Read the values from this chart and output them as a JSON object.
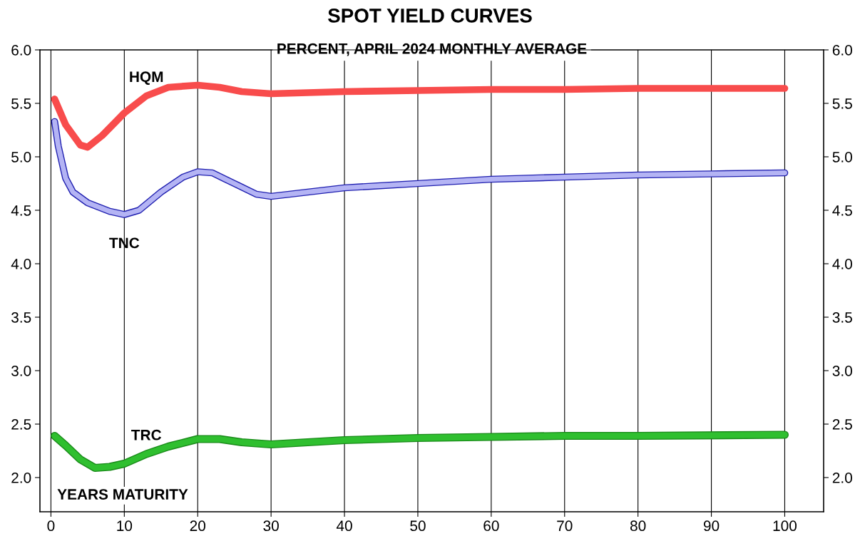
{
  "chart_data": {
    "type": "line",
    "title": "SPOT YIELD CURVES",
    "subtitle": "PERCENT, APRIL 2024 MONTHLY AVERAGE",
    "xlabel": "YEARS MATURITY",
    "xlim": [
      -1.5,
      105.3
    ],
    "xticks": [
      0,
      10,
      20,
      30,
      40,
      50,
      60,
      70,
      80,
      90,
      100
    ],
    "ylim": [
      1.68,
      6.0
    ],
    "yticks": [
      {
        "value": 2,
        "label": "2.0"
      },
      {
        "value": 2.5,
        "label": "2.5"
      },
      {
        "value": 3,
        "label": "3.0"
      },
      {
        "value": 3.5,
        "label": "3.5"
      },
      {
        "value": 4,
        "label": "4.0"
      },
      {
        "value": 4.5,
        "label": "4.5"
      },
      {
        "value": 5,
        "label": "5.0"
      },
      {
        "value": 5.5,
        "label": "5.5"
      },
      {
        "value": 6,
        "label": "6.0"
      }
    ],
    "y2lim": [
      1.68,
      6.0
    ],
    "y2ticks": [
      {
        "value": 2,
        "label": "2.0"
      },
      {
        "value": 2.5,
        "label": "2.5"
      },
      {
        "value": 3,
        "label": "3.0"
      },
      {
        "value": 3.5,
        "label": "3.5"
      },
      {
        "value": 4,
        "label": "4.0"
      },
      {
        "value": 4.5,
        "label": "4.5"
      },
      {
        "value": 5,
        "label": "5.0"
      },
      {
        "value": 5.5,
        "label": "5.5"
      },
      {
        "value": 6,
        "label": "6.0"
      }
    ],
    "grid": "x",
    "legend": false,
    "series": [
      {
        "name": "HQM",
        "color": "#f84c4c",
        "x": [
          0.5,
          2,
          4,
          5,
          7,
          10,
          13,
          16,
          20,
          23,
          26,
          30,
          40,
          50,
          60,
          70,
          80,
          100
        ],
        "values": [
          5.54,
          5.3,
          5.11,
          5.09,
          5.2,
          5.41,
          5.57,
          5.65,
          5.67,
          5.65,
          5.61,
          5.59,
          5.61,
          5.62,
          5.63,
          5.63,
          5.64,
          5.64
        ]
      },
      {
        "name": "TNC",
        "color": "#b4b4f4",
        "x": [
          0.5,
          1,
          2,
          3,
          5,
          8,
          10,
          12,
          15,
          18,
          20,
          22,
          25,
          28,
          30,
          35,
          40,
          50,
          60,
          70,
          80,
          90,
          100
        ],
        "values": [
          5.33,
          5.1,
          4.8,
          4.67,
          4.57,
          4.49,
          4.46,
          4.5,
          4.67,
          4.81,
          4.86,
          4.85,
          4.75,
          4.65,
          4.63,
          4.67,
          4.71,
          4.75,
          4.79,
          4.81,
          4.83,
          4.84,
          4.85
        ]
      },
      {
        "name": "TRC",
        "color": "#2fbf2f",
        "x": [
          0.5,
          2,
          4,
          6,
          8,
          10,
          13,
          16,
          20,
          23,
          26,
          30,
          40,
          50,
          60,
          70,
          80,
          100
        ],
        "values": [
          2.39,
          2.3,
          2.17,
          2.09,
          2.1,
          2.13,
          2.22,
          2.29,
          2.36,
          2.36,
          2.33,
          2.31,
          2.35,
          2.37,
          2.38,
          2.39,
          2.39,
          2.4
        ]
      }
    ]
  }
}
